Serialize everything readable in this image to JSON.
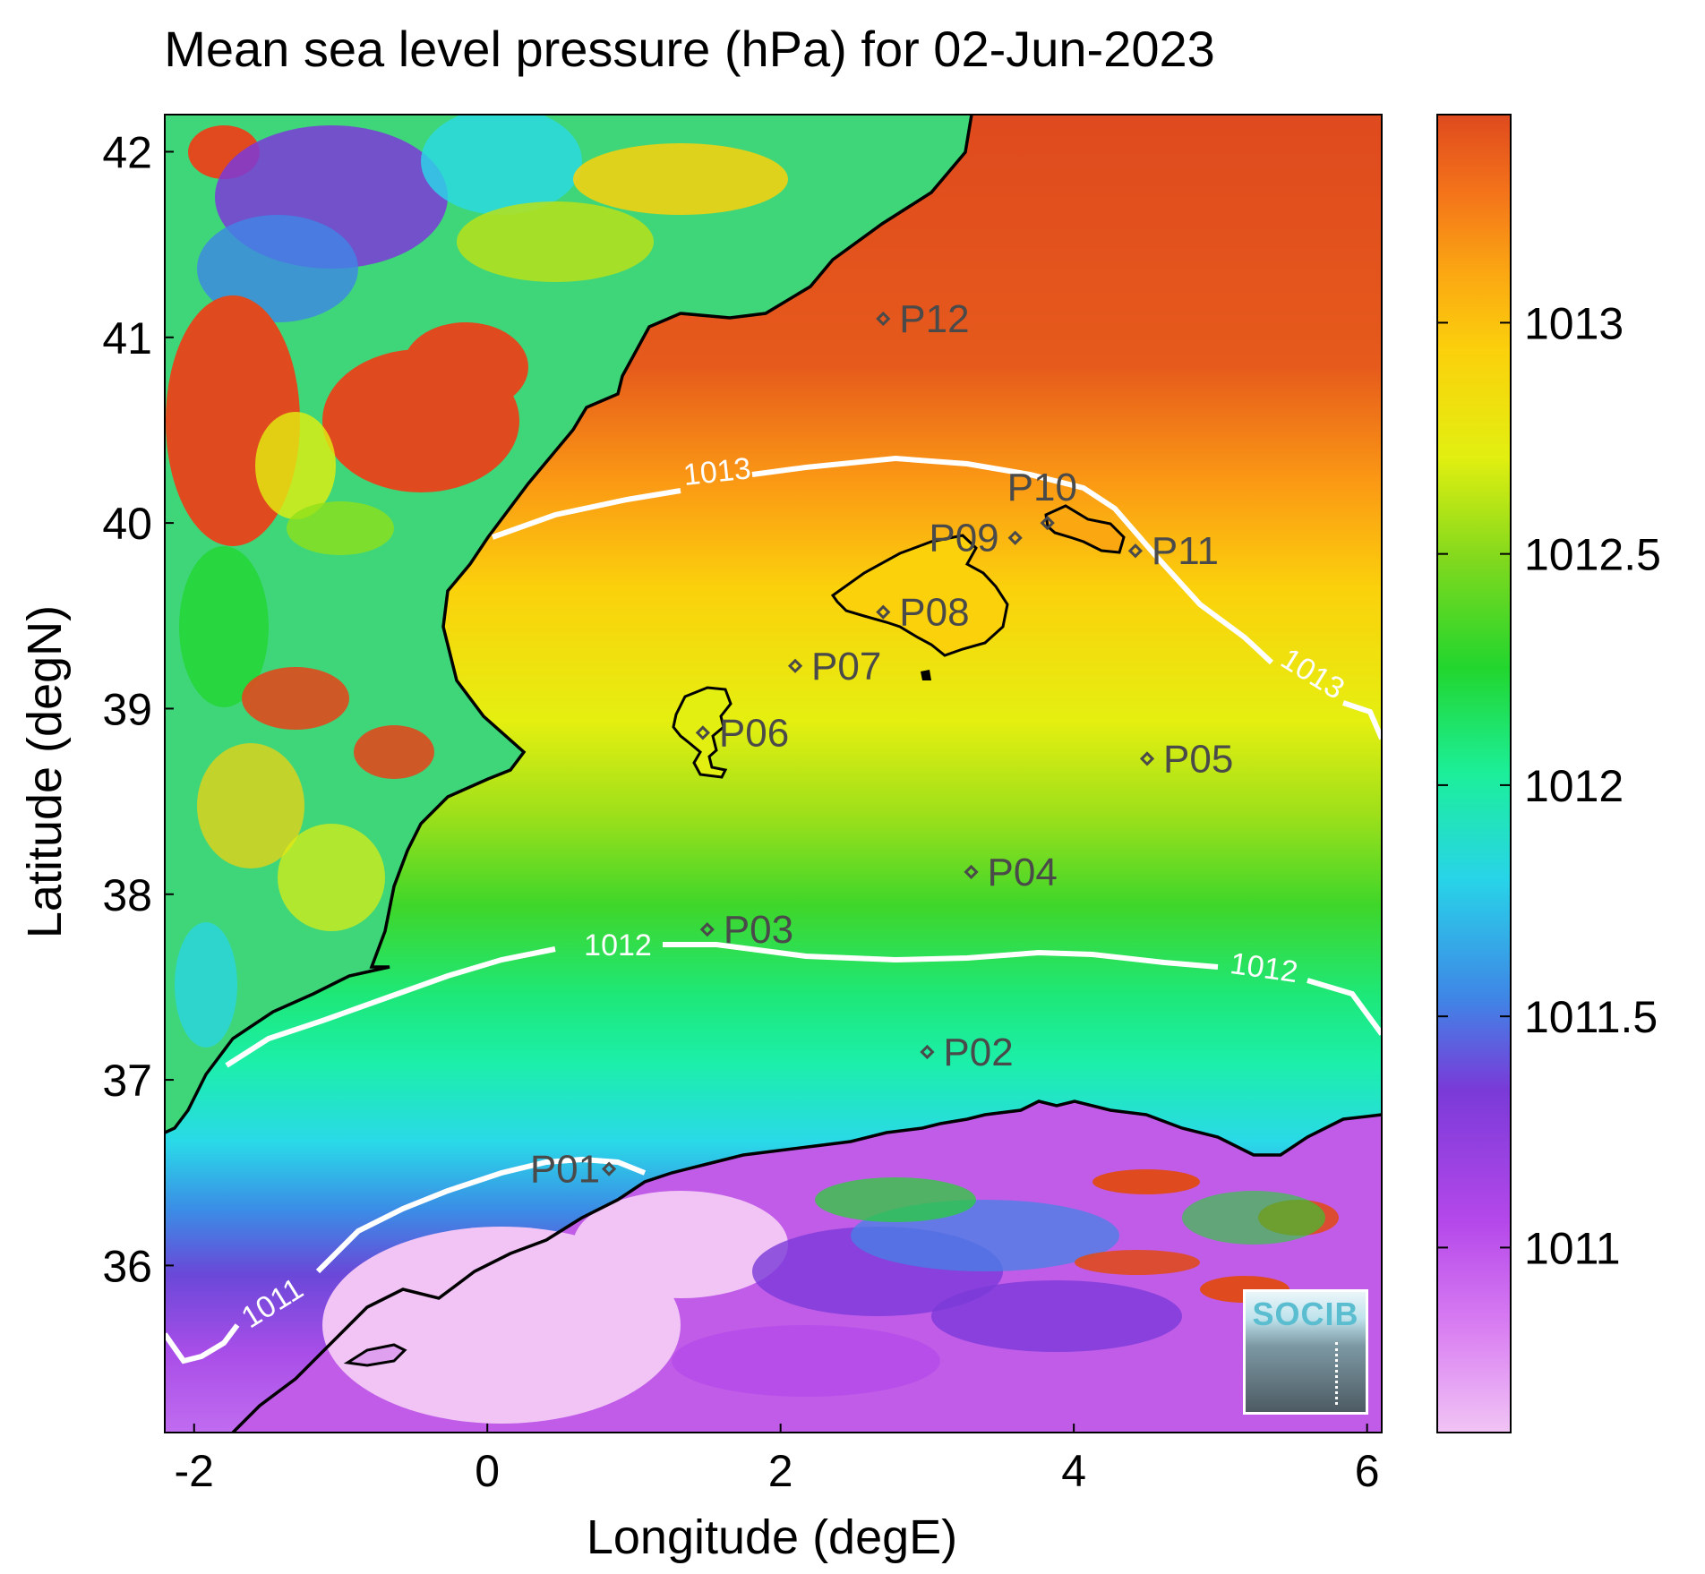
{
  "title": "Mean sea level pressure (hPa) for 02-Jun-2023",
  "map": {
    "xlabel": "Longitude (degE)",
    "ylabel": "Latitude (degN)",
    "xlim": [
      -2.2,
      6.1
    ],
    "ylim": [
      35.1,
      42.2
    ],
    "xticks": [
      "-2",
      "0",
      "2",
      "4",
      "6"
    ],
    "yticks": [
      "36",
      "37",
      "38",
      "39",
      "40",
      "41",
      "42"
    ]
  },
  "colorbar": {
    "range": [
      1010.6,
      1013.45
    ],
    "ticks": [
      "1011",
      "1011.5",
      "1012",
      "1012.5",
      "1013"
    ],
    "colormap": [
      "#f1c4f5",
      "#b548ea",
      "#7a3ad8",
      "#3f86e6",
      "#28d4e8",
      "#1cef9a",
      "#22d62e",
      "#7ed81e",
      "#e2ef10",
      "#fbd10c",
      "#fba712",
      "#f4741a",
      "#df4a1e"
    ]
  },
  "contours": [
    {
      "label": "1013"
    },
    {
      "label": "1012"
    },
    {
      "label": "1011"
    }
  ],
  "stations": [
    {
      "id": "P01",
      "lon": 0.83,
      "lat": 36.52
    },
    {
      "id": "P02",
      "lon": 3.0,
      "lat": 37.15
    },
    {
      "id": "P03",
      "lon": 1.5,
      "lat": 37.81
    },
    {
      "id": "P04",
      "lon": 3.3,
      "lat": 38.12
    },
    {
      "id": "P05",
      "lon": 4.5,
      "lat": 38.73
    },
    {
      "id": "P06",
      "lon": 1.47,
      "lat": 38.87
    },
    {
      "id": "P07",
      "lon": 2.1,
      "lat": 39.23
    },
    {
      "id": "P08",
      "lon": 2.7,
      "lat": 39.52
    },
    {
      "id": "P09",
      "lon": 3.6,
      "lat": 39.92
    },
    {
      "id": "P10",
      "lon": 3.82,
      "lat": 40.0
    },
    {
      "id": "P11",
      "lon": 4.42,
      "lat": 39.85
    },
    {
      "id": "P12",
      "lon": 2.7,
      "lat": 41.1
    }
  ],
  "logo": {
    "text": "SOCIB"
  }
}
